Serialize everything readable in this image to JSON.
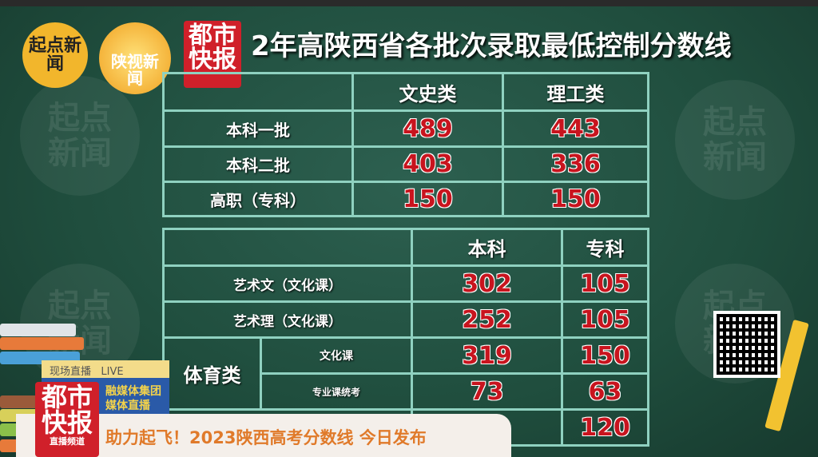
{
  "title": {
    "prefix": "2",
    "partial": "年高",
    "main": "陕西省各批次录取最低控制分数线"
  },
  "logos": {
    "qidian": "起点新闻",
    "shaanshi": "陕视新闻",
    "dushi_top": "都市",
    "dushi_bottom": "快报",
    "dushi_sub": "直播频道"
  },
  "table1": {
    "headers": [
      "",
      "文史类",
      "理工类"
    ],
    "rows": [
      {
        "label": "本科一批",
        "values": [
          "489",
          "443"
        ]
      },
      {
        "label": "本科二批",
        "values": [
          "403",
          "336"
        ]
      },
      {
        "label": "高职（专科）",
        "values": [
          "150",
          "150"
        ]
      }
    ]
  },
  "table2": {
    "headers": [
      "",
      "本科",
      "专科"
    ],
    "rows": [
      {
        "label": "艺术文（文化课）",
        "values": [
          "302",
          "105"
        ]
      },
      {
        "label": "艺术理（文化课）",
        "values": [
          "252",
          "105"
        ]
      }
    ],
    "sports": {
      "label": "体育类",
      "rows": [
        {
          "label": "文化课",
          "values": [
            "319",
            "150"
          ]
        },
        {
          "label": "专业课统考",
          "values": [
            "73",
            "63"
          ]
        }
      ]
    },
    "last_row": {
      "values": [
        "",
        "120"
      ]
    }
  },
  "live_bar": {
    "label": "现场直播",
    "live": "LIVE",
    "line1": "融媒体集团",
    "line2": "媒体直播"
  },
  "ticker": {
    "text": "助力起飞！2023陕西高考分数线  今日发布"
  },
  "colors": {
    "board": "#1f4d3d",
    "grid": "#8fd1c0",
    "number": "#c8141e",
    "ticker_text": "#e07a2a",
    "brand_red": "#d0202a"
  }
}
